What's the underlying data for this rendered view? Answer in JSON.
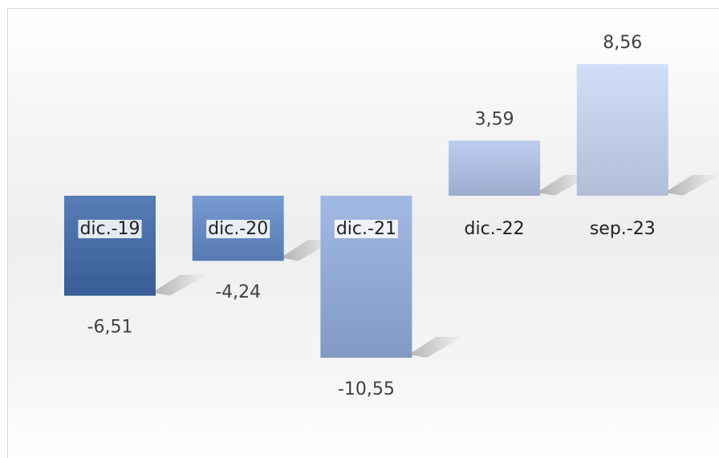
{
  "chart_data": {
    "type": "bar",
    "categories": [
      "dic.-19",
      "dic.-20",
      "dic.-21",
      "dic.-22",
      "sep.-23"
    ],
    "values": [
      -6.51,
      -4.24,
      -10.55,
      3.59,
      8.56
    ],
    "value_labels": [
      "-6,51",
      "-4,24",
      "-10,55",
      "3,59",
      "8,56"
    ],
    "title": "",
    "xlabel": "",
    "ylabel": "",
    "ylim": [
      -12,
      10
    ],
    "grid": false,
    "legend": "none",
    "bar_colors": [
      "#4a6fa8",
      "#6a8cc4",
      "#94abd6",
      "#aebfe0",
      "#c3d0ea"
    ]
  }
}
